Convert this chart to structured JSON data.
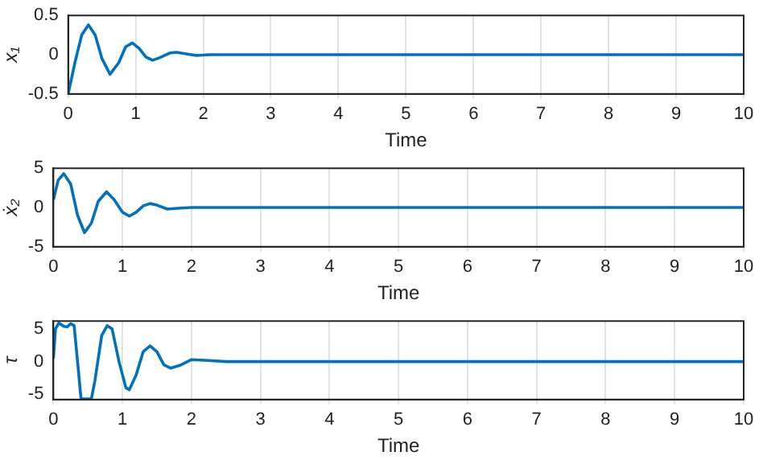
{
  "chart_data": [
    {
      "type": "line",
      "xlabel": "Time",
      "ylabel": "x₁",
      "xlim": [
        0,
        10
      ],
      "xticks": [
        0,
        1,
        2,
        3,
        4,
        5,
        6,
        7,
        8,
        9,
        10
      ],
      "ylim": [
        -0.5,
        0.5
      ],
      "yticks": [
        -0.5,
        0,
        0.5
      ],
      "grid": "x",
      "legend": false,
      "series": [
        {
          "color": "#0072bd",
          "x": [
            0,
            0.1,
            0.2,
            0.3,
            0.4,
            0.5,
            0.62,
            0.75,
            0.85,
            0.95,
            1.05,
            1.15,
            1.25,
            1.35,
            1.5,
            1.6,
            1.75,
            1.9,
            2.1,
            3,
            10
          ],
          "values": [
            -0.5,
            -0.1,
            0.25,
            0.38,
            0.25,
            -0.05,
            -0.25,
            -0.1,
            0.1,
            0.15,
            0.08,
            -0.03,
            -0.07,
            -0.04,
            0.02,
            0.03,
            0.01,
            -0.01,
            0,
            0,
            0
          ]
        }
      ]
    },
    {
      "type": "line",
      "xlabel": "Time",
      "ylabel": "ẋ₂",
      "xlim": [
        0,
        10
      ],
      "xticks": [
        0,
        1,
        2,
        3,
        4,
        5,
        6,
        7,
        8,
        9,
        10
      ],
      "ylim": [
        -5,
        5
      ],
      "yticks": [
        -5,
        0,
        5
      ],
      "grid": "x",
      "legend": false,
      "series": [
        {
          "color": "#0072bd",
          "x": [
            0,
            0.07,
            0.15,
            0.25,
            0.35,
            0.45,
            0.55,
            0.65,
            0.77,
            0.88,
            1.0,
            1.1,
            1.2,
            1.3,
            1.4,
            1.5,
            1.65,
            1.8,
            2,
            10
          ],
          "values": [
            1,
            3.5,
            4.3,
            3,
            -1,
            -3.2,
            -2,
            0.8,
            2,
            1,
            -0.6,
            -1.1,
            -0.6,
            0.2,
            0.5,
            0.3,
            -0.2,
            -0.1,
            0,
            0
          ]
        }
      ]
    },
    {
      "type": "line",
      "xlabel": "Time",
      "ylabel": "τ",
      "xlim": [
        0,
        10
      ],
      "xticks": [
        0,
        1,
        2,
        3,
        4,
        5,
        6,
        7,
        8,
        9,
        10
      ],
      "ylim": [
        -5.8,
        6.2
      ],
      "yticks": [
        -5,
        0,
        5
      ],
      "grid": "x",
      "legend": false,
      "series": [
        {
          "color": "#0072bd",
          "x": [
            0,
            0.03,
            0.08,
            0.15,
            0.2,
            0.25,
            0.3,
            0.35,
            0.4,
            0.55,
            0.6,
            0.7,
            0.78,
            0.85,
            0.95,
            1.05,
            1.1,
            1.2,
            1.3,
            1.4,
            1.5,
            1.6,
            1.7,
            1.85,
            2,
            2.2,
            2.5,
            10
          ],
          "values": [
            0.5,
            5,
            5.9,
            5.4,
            5.3,
            5.8,
            5.5,
            0,
            -5.7,
            -5.7,
            -3,
            4,
            5.5,
            5,
            0,
            -4,
            -4.3,
            -2,
            1.5,
            2.4,
            1.5,
            -0.5,
            -1,
            -0.5,
            0.3,
            0.2,
            0,
            0
          ]
        }
      ]
    }
  ]
}
